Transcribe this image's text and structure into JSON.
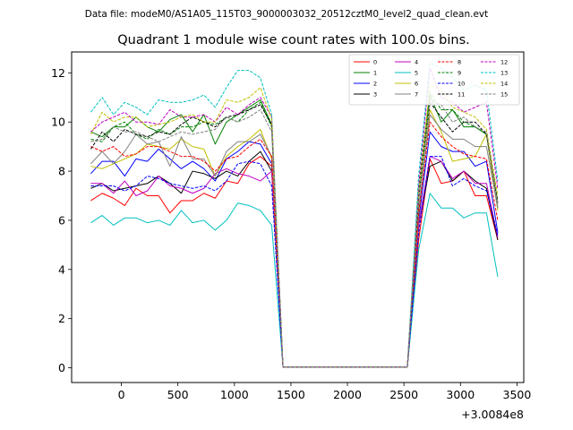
{
  "chart_data": {
    "type": "line",
    "suptitle": "Data file: modeM0/AS1A05_115T03_9000003032_20512cztM0_level2_quad_clean.evt",
    "title": "Quadrant 1 module wise count rates with 100.0s bins.",
    "xlabel": "",
    "ylabel": "",
    "x_offset_label": "+3.0084e8",
    "xlim": [
      -440,
      3560
    ],
    "ylim": [
      -0.6,
      12.85
    ],
    "xticks": [
      0,
      500,
      1000,
      1500,
      2000,
      2500,
      3000,
      3500
    ],
    "yticks": [
      0,
      2,
      4,
      6,
      8,
      10,
      12
    ],
    "legend_position": "upper right",
    "legend_columns": 4,
    "x": [
      -270,
      -170,
      -70,
      30,
      130,
      230,
      330,
      430,
      530,
      630,
      730,
      830,
      930,
      1030,
      1130,
      1230,
      1330,
      1430,
      1530,
      1630,
      1730,
      1830,
      1930,
      2030,
      2130,
      2230,
      2330,
      2430,
      2530,
      2630,
      2730,
      2830,
      2930,
      3030,
      3130,
      3230,
      3330
    ],
    "series": [
      {
        "name": "0",
        "color": "#ff0000",
        "dash": false,
        "values": [
          6.8,
          7.1,
          6.9,
          6.6,
          7.3,
          7.0,
          7.0,
          6.3,
          6.8,
          6.8,
          7.1,
          6.9,
          7.6,
          7.5,
          8.3,
          8.6,
          8.2,
          0.03,
          0.03,
          0.03,
          0.03,
          0.03,
          0.03,
          0.03,
          0.03,
          0.03,
          0.03,
          0.03,
          0.03,
          5.2,
          8.5,
          7.5,
          7.6,
          8.0,
          7.0,
          7.0,
          5.2
        ]
      },
      {
        "name": "1",
        "color": "#008000",
        "dash": false,
        "values": [
          9.6,
          9.4,
          9.8,
          9.8,
          10.2,
          9.8,
          9.6,
          10.1,
          10.3,
          9.6,
          10.3,
          9.1,
          10.0,
          10.3,
          10.6,
          10.9,
          9.9,
          0.03,
          0.03,
          0.03,
          0.03,
          0.03,
          0.03,
          0.03,
          0.03,
          0.03,
          0.03,
          0.03,
          0.03,
          7.0,
          11.1,
          10.0,
          10.5,
          9.8,
          9.8,
          9.5,
          6.5
        ]
      },
      {
        "name": "2",
        "color": "#0000ff",
        "dash": false,
        "values": [
          7.9,
          8.4,
          8.4,
          7.8,
          8.5,
          8.4,
          8.9,
          8.5,
          8.1,
          8.4,
          8.1,
          7.6,
          8.5,
          8.8,
          9.2,
          9.1,
          8.3,
          0.03,
          0.03,
          0.03,
          0.03,
          0.03,
          0.03,
          0.03,
          0.03,
          0.03,
          0.03,
          0.03,
          0.03,
          6.0,
          9.6,
          9.0,
          8.8,
          8.8,
          8.2,
          8.4,
          5.5
        ]
      },
      {
        "name": "3",
        "color": "#000000",
        "dash": false,
        "values": [
          7.3,
          7.5,
          7.2,
          7.3,
          7.4,
          7.5,
          7.8,
          7.5,
          7.1,
          8.0,
          7.9,
          7.7,
          8.0,
          7.8,
          8.4,
          8.8,
          8.0,
          0.03,
          0.03,
          0.03,
          0.03,
          0.03,
          0.03,
          0.03,
          0.03,
          0.03,
          0.03,
          0.03,
          0.03,
          5.8,
          8.2,
          8.4,
          7.6,
          8.0,
          7.6,
          7.3,
          5.2
        ]
      },
      {
        "name": "4",
        "color": "#bf00bf",
        "dash": false,
        "values": [
          7.5,
          7.5,
          7.1,
          7.6,
          7.0,
          7.2,
          7.8,
          7.4,
          7.3,
          7.1,
          7.3,
          7.9,
          8.1,
          7.9,
          7.8,
          7.6,
          8.0,
          0.03,
          0.03,
          0.03,
          0.03,
          0.03,
          0.03,
          0.03,
          0.03,
          0.03,
          0.03,
          0.03,
          0.03,
          5.8,
          8.6,
          8.4,
          7.7,
          8.0,
          7.5,
          7.5,
          5.3
        ]
      },
      {
        "name": "5",
        "color": "#00bfbf",
        "dash": false,
        "values": [
          5.9,
          6.2,
          5.8,
          6.1,
          6.1,
          5.9,
          6.0,
          5.8,
          6.4,
          5.9,
          6.0,
          5.6,
          6.0,
          6.7,
          6.6,
          6.4,
          5.8,
          0.03,
          0.03,
          0.03,
          0.03,
          0.03,
          0.03,
          0.03,
          0.03,
          0.03,
          0.03,
          0.03,
          0.03,
          4.8,
          7.1,
          6.5,
          6.5,
          6.1,
          6.3,
          6.3,
          3.7
        ]
      },
      {
        "name": "6",
        "color": "#bfbf00",
        "dash": false,
        "values": [
          8.2,
          8.1,
          8.3,
          8.5,
          8.7,
          9.1,
          9.0,
          8.9,
          9.3,
          9.0,
          8.9,
          7.8,
          8.6,
          9.0,
          9.3,
          9.7,
          8.5,
          0.03,
          0.03,
          0.03,
          0.03,
          0.03,
          0.03,
          0.03,
          0.03,
          0.03,
          0.03,
          0.03,
          0.03,
          6.2,
          10.5,
          9.6,
          8.4,
          8.5,
          8.6,
          9.5,
          6.4
        ]
      },
      {
        "name": "7",
        "color": "#808080",
        "dash": false,
        "values": [
          8.3,
          8.8,
          8.3,
          8.8,
          9.5,
          9.1,
          9.2,
          8.2,
          9.4,
          8.5,
          8.5,
          7.8,
          8.8,
          9.2,
          9.2,
          9.5,
          8.6,
          0.03,
          0.03,
          0.03,
          0.03,
          0.03,
          0.03,
          0.03,
          0.03,
          0.03,
          0.03,
          0.03,
          0.03,
          6.4,
          10.3,
          9.7,
          9.3,
          9.3,
          9.0,
          9.0,
          6.5
        ]
      },
      {
        "name": "8",
        "color": "#ff0000",
        "dash": true,
        "values": [
          9.0,
          8.8,
          9.0,
          8.6,
          8.7,
          9.0,
          9.0,
          8.8,
          8.6,
          8.6,
          8.4,
          8.0,
          8.5,
          8.6,
          9.0,
          9.3,
          8.6,
          0.03,
          0.03,
          0.03,
          0.03,
          0.03,
          0.03,
          0.03,
          0.03,
          0.03,
          0.03,
          0.03,
          0.03,
          6.3,
          10.0,
          9.4,
          9.0,
          8.7,
          8.6,
          8.5,
          6.0
        ]
      },
      {
        "name": "9",
        "color": "#008000",
        "dash": true,
        "values": [
          9.3,
          9.2,
          9.8,
          10.0,
          9.5,
          9.3,
          9.7,
          9.5,
          9.8,
          9.8,
          10.0,
          9.9,
          10.2,
          10.0,
          10.5,
          10.8,
          9.8,
          0.03,
          0.03,
          0.03,
          0.03,
          0.03,
          0.03,
          0.03,
          0.03,
          0.03,
          0.03,
          0.03,
          0.03,
          7.3,
          11.2,
          10.5,
          10.5,
          10.0,
          9.8,
          9.5,
          6.8
        ]
      },
      {
        "name": "10",
        "color": "#0000ff",
        "dash": true,
        "values": [
          7.4,
          7.4,
          7.4,
          7.2,
          7.4,
          7.8,
          7.7,
          7.5,
          7.4,
          7.3,
          7.4,
          7.2,
          7.6,
          8.3,
          8.4,
          8.3,
          7.4,
          0.03,
          0.03,
          0.03,
          0.03,
          0.03,
          0.03,
          0.03,
          0.03,
          0.03,
          0.03,
          0.03,
          0.03,
          5.5,
          8.6,
          8.6,
          7.4,
          7.7,
          7.4,
          7.2,
          5.4
        ]
      },
      {
        "name": "11",
        "color": "#000000",
        "dash": true,
        "values": [
          8.9,
          9.6,
          9.2,
          9.7,
          9.5,
          9.4,
          9.6,
          9.5,
          9.9,
          10.2,
          10.0,
          9.8,
          10.2,
          10.3,
          10.5,
          10.7,
          9.9,
          0.03,
          0.03,
          0.03,
          0.03,
          0.03,
          0.03,
          0.03,
          0.03,
          0.03,
          0.03,
          0.03,
          0.03,
          6.8,
          10.8,
          10.2,
          9.6,
          10.0,
          10.0,
          9.5,
          6.7
        ]
      },
      {
        "name": "12",
        "color": "#bf00bf",
        "dash": true,
        "values": [
          9.6,
          10.0,
          10.2,
          10.4,
          10.0,
          10.0,
          9.9,
          10.5,
          10.2,
          10.2,
          10.3,
          10.0,
          10.6,
          10.3,
          10.7,
          11.0,
          10.2,
          0.03,
          0.03,
          0.03,
          0.03,
          0.03,
          0.03,
          0.03,
          0.03,
          0.03,
          0.03,
          0.03,
          0.03,
          7.4,
          12.2,
          11.0,
          10.8,
          10.4,
          10.6,
          10.8,
          7.3
        ]
      },
      {
        "name": "13",
        "color": "#00bfbf",
        "dash": true,
        "values": [
          10.4,
          11.0,
          10.3,
          10.8,
          10.6,
          10.3,
          10.9,
          10.8,
          10.8,
          10.9,
          11.1,
          10.6,
          11.4,
          12.1,
          12.1,
          11.8,
          10.3,
          0.03,
          0.03,
          0.03,
          0.03,
          0.03,
          0.03,
          0.03,
          0.03,
          0.03,
          0.03,
          0.03,
          0.03,
          7.8,
          12.4,
          12.2,
          11.8,
          11.3,
          11.5,
          11.3,
          7.6
        ]
      },
      {
        "name": "14",
        "color": "#bfbf00",
        "dash": true,
        "values": [
          9.5,
          10.4,
          10.0,
          10.2,
          10.2,
          9.8,
          9.9,
          10.0,
          10.2,
          10.3,
          10.0,
          10.0,
          10.9,
          10.8,
          11.0,
          11.4,
          10.1,
          0.03,
          0.03,
          0.03,
          0.03,
          0.03,
          0.03,
          0.03,
          0.03,
          0.03,
          0.03,
          0.03,
          0.03,
          7.0,
          11.5,
          11.3,
          10.6,
          10.4,
          10.2,
          9.7,
          7.0
        ]
      },
      {
        "name": "15",
        "color": "#808080",
        "dash": true,
        "values": [
          9.2,
          9.3,
          9.8,
          9.6,
          9.6,
          9.4,
          9.2,
          9.4,
          9.6,
          9.5,
          9.6,
          9.7,
          10.2,
          10.0,
          10.2,
          10.5,
          9.6,
          0.03,
          0.03,
          0.03,
          0.03,
          0.03,
          0.03,
          0.03,
          0.03,
          0.03,
          0.03,
          0.03,
          0.03,
          6.8,
          10.9,
          10.7,
          10.0,
          10.2,
          9.8,
          9.6,
          6.6
        ]
      }
    ]
  }
}
